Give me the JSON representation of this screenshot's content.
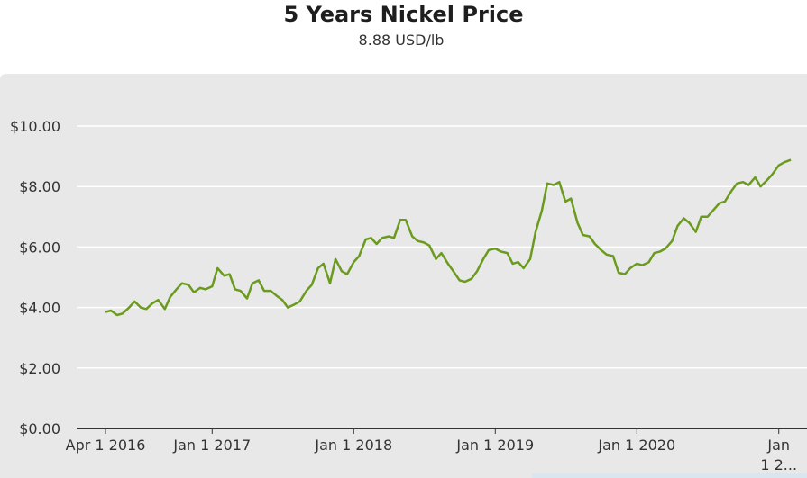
{
  "header": {
    "title": "5 Years Nickel Price",
    "subtitle": "8.88 USD/lb"
  },
  "colors": {
    "line": "#6b9b1e",
    "plot_background": "#e8e8e8",
    "grid": "#ffffff",
    "text": "#333333"
  },
  "chart_data": {
    "type": "line",
    "title": "5 Years Nickel Price",
    "subtitle": "8.88 USD/lb",
    "xlabel": "",
    "ylabel": "",
    "ylim": [
      0,
      10
    ],
    "grid": true,
    "y_ticks": [
      {
        "value": 0,
        "label": "$0.00"
      },
      {
        "value": 2,
        "label": "$2.00"
      },
      {
        "value": 4,
        "label": "$4.00"
      },
      {
        "value": 6,
        "label": "$6.00"
      },
      {
        "value": 8,
        "label": "$8.00"
      },
      {
        "value": 10,
        "label": "$10.00"
      }
    ],
    "x_ticks": [
      {
        "date": "2016-04-01",
        "label": "Apr 1 2016"
      },
      {
        "date": "2017-01-01",
        "label": "Jan 1 2017"
      },
      {
        "date": "2018-01-01",
        "label": "Jan 1 2018"
      },
      {
        "date": "2019-01-01",
        "label": "Jan 1 2019"
      },
      {
        "date": "2020-01-01",
        "label": "Jan 1 2020"
      },
      {
        "date": "2021-01-01",
        "label": "Jan 1 2..."
      }
    ],
    "series": [
      {
        "x": [
          "2016-04-01",
          "2016-04-15",
          "2016-05-01",
          "2016-05-15",
          "2016-06-01",
          "2016-06-15",
          "2016-07-01",
          "2016-07-15",
          "2016-08-01",
          "2016-08-15",
          "2016-09-01",
          "2016-09-15",
          "2016-10-01",
          "2016-10-15",
          "2016-11-01",
          "2016-11-15",
          "2016-12-01",
          "2016-12-15",
          "2017-01-01",
          "2017-01-15",
          "2017-02-01",
          "2017-02-15",
          "2017-03-01",
          "2017-03-15",
          "2017-04-01",
          "2017-04-15",
          "2017-05-01",
          "2017-05-15",
          "2017-06-01",
          "2017-06-15",
          "2017-07-01",
          "2017-07-15",
          "2017-08-01",
          "2017-08-15",
          "2017-09-01",
          "2017-09-15",
          "2017-10-01",
          "2017-10-15",
          "2017-11-01",
          "2017-11-15",
          "2017-12-01",
          "2017-12-15",
          "2018-01-01",
          "2018-01-15",
          "2018-02-01",
          "2018-02-15",
          "2018-03-01",
          "2018-03-15",
          "2018-04-01",
          "2018-04-15",
          "2018-05-01",
          "2018-05-15",
          "2018-06-01",
          "2018-06-15",
          "2018-07-01",
          "2018-07-15",
          "2018-08-01",
          "2018-08-15",
          "2018-09-01",
          "2018-09-15",
          "2018-10-01",
          "2018-10-15",
          "2018-11-01",
          "2018-11-15",
          "2018-12-01",
          "2018-12-15",
          "2019-01-01",
          "2019-01-15",
          "2019-02-01",
          "2019-02-15",
          "2019-03-01",
          "2019-03-15",
          "2019-04-01",
          "2019-04-15",
          "2019-05-01",
          "2019-05-15",
          "2019-06-01",
          "2019-06-15",
          "2019-07-01",
          "2019-07-15",
          "2019-08-01",
          "2019-08-15",
          "2019-09-01",
          "2019-09-15",
          "2019-10-01",
          "2019-10-15",
          "2019-11-01",
          "2019-11-15",
          "2019-12-01",
          "2019-12-15",
          "2020-01-01",
          "2020-01-15",
          "2020-02-01",
          "2020-02-15",
          "2020-03-01",
          "2020-03-15",
          "2020-04-01",
          "2020-04-15",
          "2020-05-01",
          "2020-05-15",
          "2020-06-01",
          "2020-06-15",
          "2020-07-01",
          "2020-07-15",
          "2020-08-01",
          "2020-08-15",
          "2020-09-01",
          "2020-09-15",
          "2020-10-01",
          "2020-10-15",
          "2020-11-01",
          "2020-11-15",
          "2020-12-01",
          "2020-12-15",
          "2021-01-01",
          "2021-01-15",
          "2021-02-01"
        ],
        "values": [
          3.85,
          3.9,
          3.75,
          3.8,
          4.0,
          4.2,
          4.0,
          3.95,
          4.15,
          4.25,
          3.95,
          4.35,
          4.6,
          4.8,
          4.75,
          4.5,
          4.65,
          4.6,
          4.7,
          5.3,
          5.05,
          5.1,
          4.6,
          4.55,
          4.3,
          4.8,
          4.9,
          4.55,
          4.55,
          4.4,
          4.25,
          4.0,
          4.1,
          4.2,
          4.55,
          4.75,
          5.3,
          5.45,
          4.8,
          5.6,
          5.2,
          5.1,
          5.5,
          5.7,
          6.25,
          6.3,
          6.1,
          6.3,
          6.35,
          6.3,
          6.9,
          6.9,
          6.35,
          6.2,
          6.15,
          6.05,
          5.6,
          5.8,
          5.45,
          5.2,
          4.9,
          4.85,
          4.95,
          5.2,
          5.6,
          5.9,
          5.95,
          5.85,
          5.8,
          5.45,
          5.5,
          5.3,
          5.6,
          6.5,
          7.2,
          8.1,
          8.05,
          8.15,
          7.5,
          7.6,
          6.8,
          6.4,
          6.35,
          6.1,
          5.9,
          5.75,
          5.7,
          5.15,
          5.1,
          5.3,
          5.45,
          5.4,
          5.5,
          5.8,
          5.85,
          5.95,
          6.2,
          6.7,
          6.95,
          6.8,
          6.5,
          7.0,
          7.0,
          7.2,
          7.45,
          7.5,
          7.85,
          8.1,
          8.15,
          8.05,
          8.3,
          8.0,
          8.2,
          8.4,
          8.7,
          8.8,
          8.88
        ]
      }
    ]
  }
}
